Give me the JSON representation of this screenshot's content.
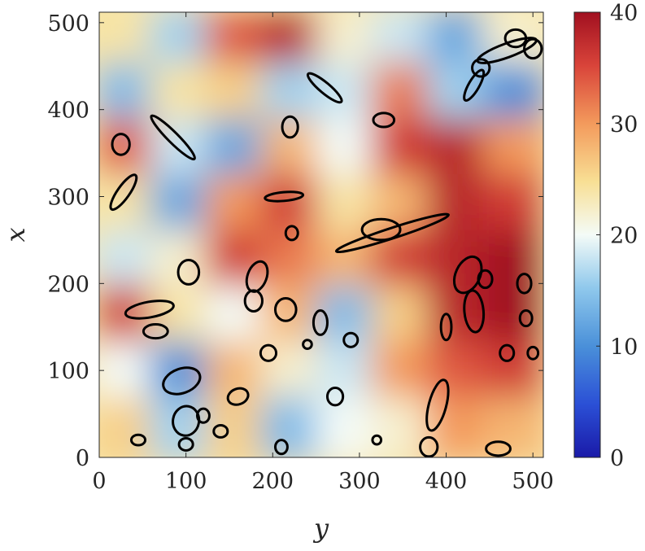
{
  "chart_data": {
    "type": "heatmap",
    "title": "",
    "xlabel": "y",
    "ylabel": "x",
    "xlim": [
      0,
      512
    ],
    "ylim": [
      0,
      512
    ],
    "x_ticks": [
      0,
      100,
      200,
      300,
      400,
      500
    ],
    "y_ticks": [
      0,
      100,
      200,
      300,
      400,
      500
    ],
    "x_tick_labels": [
      "0",
      "100",
      "200",
      "300",
      "400",
      "500"
    ],
    "y_tick_labels": [
      "0",
      "100",
      "200",
      "300",
      "400",
      "500"
    ],
    "colormap": "blue-white-red (jet-like, diverging)",
    "colorbar": {
      "range": [
        0,
        40
      ],
      "ticks": [
        0,
        10,
        20,
        30,
        40
      ],
      "tick_labels": [
        "0",
        "10",
        "20",
        "30",
        "40"
      ],
      "placement": "right"
    },
    "grid": false,
    "field_samples": {
      "note_x": "columns along y axis, rows along x axis",
      "y_centers": [
        32,
        96,
        160,
        224,
        288,
        352,
        416,
        480
      ],
      "x_centers": [
        480,
        416,
        352,
        288,
        224,
        160,
        96,
        32
      ],
      "values": [
        [
          24,
          16,
          34,
          38,
          22,
          18,
          12,
          22
        ],
        [
          14,
          24,
          26,
          16,
          18,
          32,
          16,
          10
        ],
        [
          34,
          18,
          12,
          28,
          20,
          36,
          38,
          30
        ],
        [
          24,
          12,
          30,
          36,
          24,
          28,
          38,
          36
        ],
        [
          18,
          22,
          36,
          32,
          28,
          36,
          38,
          40
        ],
        [
          36,
          24,
          20,
          28,
          14,
          26,
          38,
          40
        ],
        [
          20,
          10,
          28,
          22,
          18,
          30,
          34,
          36
        ],
        [
          26,
          16,
          26,
          14,
          20,
          22,
          30,
          28
        ]
      ]
    },
    "contours": [
      {
        "y": 95,
        "x": 88,
        "ry": 22,
        "rx": 14,
        "rot": -20
      },
      {
        "y": 100,
        "x": 42,
        "ry": 15,
        "rx": 17,
        "rot": 10
      },
      {
        "y": 58,
        "x": 170,
        "ry": 9,
        "rx": 28,
        "rot": 80
      },
      {
        "y": 103,
        "x": 213,
        "ry": 12,
        "rx": 14,
        "rot": 0
      },
      {
        "y": 182,
        "x": 208,
        "ry": 11,
        "rx": 18,
        "rot": 20
      },
      {
        "y": 178,
        "x": 180,
        "ry": 10,
        "rx": 12,
        "rot": 0
      },
      {
        "y": 215,
        "x": 170,
        "ry": 12,
        "rx": 13,
        "rot": 0
      },
      {
        "y": 195,
        "x": 120,
        "ry": 9,
        "rx": 9,
        "rot": 0
      },
      {
        "y": 255,
        "x": 155,
        "ry": 8,
        "rx": 14,
        "rot": 0
      },
      {
        "y": 290,
        "x": 135,
        "ry": 8,
        "rx": 8,
        "rot": 0
      },
      {
        "y": 338,
        "x": 258,
        "ry": 68,
        "rx": 6,
        "rot": -18
      },
      {
        "y": 400,
        "x": 150,
        "ry": 15,
        "rx": 6,
        "rot": -90
      },
      {
        "y": 425,
        "x": 210,
        "ry": 14,
        "rx": 22,
        "rot": 25
      },
      {
        "y": 432,
        "x": 168,
        "ry": 11,
        "rx": 24,
        "rot": -5
      },
      {
        "y": 445,
        "x": 205,
        "ry": 8,
        "rx": 10,
        "rot": 0
      },
      {
        "y": 490,
        "x": 200,
        "ry": 8,
        "rx": 11,
        "rot": 0
      },
      {
        "y": 492,
        "x": 160,
        "ry": 7,
        "rx": 9,
        "rot": 0
      },
      {
        "y": 325,
        "x": 262,
        "ry": 22,
        "rx": 12,
        "rot": 0
      },
      {
        "y": 213,
        "x": 300,
        "ry": 22,
        "rx": 5,
        "rot": -5
      },
      {
        "y": 28,
        "x": 305,
        "ry": 24,
        "rx": 7,
        "rot": -55
      },
      {
        "y": 85,
        "x": 368,
        "ry": 35,
        "rx": 6,
        "rot": 45
      },
      {
        "y": 25,
        "x": 360,
        "ry": 10,
        "rx": 12,
        "rot": 0
      },
      {
        "y": 220,
        "x": 380,
        "ry": 9,
        "rx": 12,
        "rot": 0
      },
      {
        "y": 260,
        "x": 425,
        "ry": 25,
        "rx": 6,
        "rot": 40
      },
      {
        "y": 328,
        "x": 388,
        "ry": 12,
        "rx": 8,
        "rot": 0
      },
      {
        "y": 432,
        "x": 428,
        "ry": 20,
        "rx": 6,
        "rot": -60
      },
      {
        "y": 440,
        "x": 448,
        "ry": 10,
        "rx": 10,
        "rot": 0
      },
      {
        "y": 470,
        "x": 468,
        "ry": 36,
        "rx": 8,
        "rot": -20
      },
      {
        "y": 480,
        "x": 482,
        "ry": 12,
        "rx": 10,
        "rot": 0
      },
      {
        "y": 500,
        "x": 470,
        "ry": 10,
        "rx": 11,
        "rot": 0
      },
      {
        "y": 460,
        "x": 10,
        "ry": 14,
        "rx": 8,
        "rot": 0
      },
      {
        "y": 380,
        "x": 12,
        "ry": 10,
        "rx": 11,
        "rot": 0
      },
      {
        "y": 210,
        "x": 12,
        "ry": 7,
        "rx": 8,
        "rot": 0
      },
      {
        "y": 100,
        "x": 15,
        "ry": 8,
        "rx": 7,
        "rot": 0
      },
      {
        "y": 160,
        "x": 70,
        "ry": 12,
        "rx": 9,
        "rot": -20
      },
      {
        "y": 65,
        "x": 145,
        "ry": 14,
        "rx": 8,
        "rot": 0
      },
      {
        "y": 390,
        "x": 60,
        "ry": 10,
        "rx": 30,
        "rot": 15
      },
      {
        "y": 120,
        "x": 48,
        "ry": 7,
        "rx": 8,
        "rot": 0
      },
      {
        "y": 45,
        "x": 20,
        "ry": 8,
        "rx": 6,
        "rot": 0
      },
      {
        "y": 140,
        "x": 30,
        "ry": 8,
        "rx": 7,
        "rot": 0
      },
      {
        "y": 272,
        "x": 70,
        "ry": 9,
        "rx": 10,
        "rot": 0
      },
      {
        "y": 470,
        "x": 120,
        "ry": 8,
        "rx": 9,
        "rot": 0
      },
      {
        "y": 500,
        "x": 120,
        "ry": 6,
        "rx": 7,
        "rot": 0
      },
      {
        "y": 222,
        "x": 258,
        "ry": 7,
        "rx": 8,
        "rot": 0
      },
      {
        "y": 320,
        "x": 20,
        "ry": 5,
        "rx": 5,
        "rot": 0
      },
      {
        "y": 240,
        "x": 130,
        "ry": 5,
        "rx": 5,
        "rot": 0
      }
    ]
  }
}
